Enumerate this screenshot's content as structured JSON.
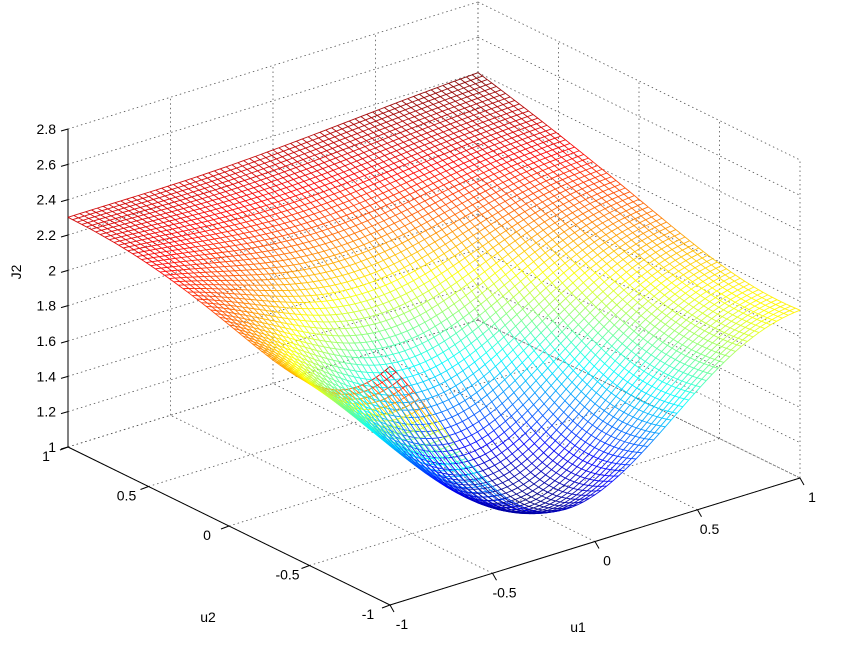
{
  "chart_data": {
    "type": "surface",
    "title": "",
    "xlabel": "u1",
    "ylabel": "u2",
    "zlabel": "J2",
    "xlim": [
      -1,
      1
    ],
    "ylim": [
      -1,
      1
    ],
    "zlim": [
      1,
      2.8
    ],
    "x_ticks": [
      "-1",
      "-0.5",
      "0",
      "0.5",
      "1"
    ],
    "y_ticks": [
      "-1",
      "-0.5",
      "0",
      "0.5",
      "1"
    ],
    "z_ticks": [
      "1",
      "1.2",
      "1.4",
      "1.6",
      "1.8",
      "2",
      "2.2",
      "2.4",
      "2.6",
      "2.8"
    ],
    "grid": true,
    "colormap": "jet",
    "shading": "mesh",
    "corner_values": [
      {
        "u1": -1,
        "u2": -1,
        "J2": 2.35
      },
      {
        "u1": 1,
        "u2": -1,
        "J2": 1.95
      },
      {
        "u1": -1,
        "u2": 1,
        "J2": 2.3
      },
      {
        "u1": 1,
        "u2": 1,
        "J2": 2.4
      }
    ],
    "minimum": {
      "u1": -0.2,
      "u2": -0.7,
      "J2": 1.15
    }
  }
}
